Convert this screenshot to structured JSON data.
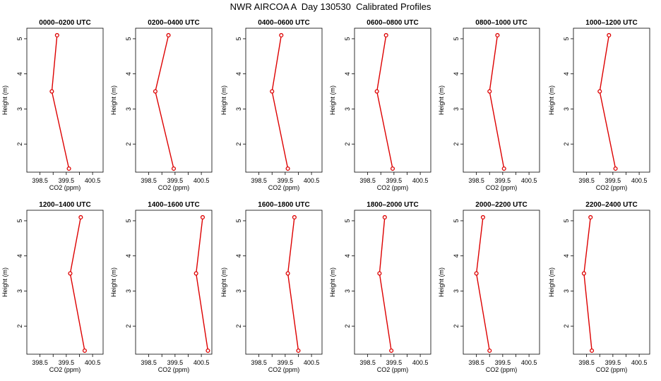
{
  "figure": {
    "title": "NWR AIRCOA A  Day 130530  Calibrated Profiles"
  },
  "colors": {
    "series": "#dd0000",
    "axis": "#000000"
  },
  "chart_data": [
    {
      "type": "line",
      "title": "0000–0200 UTC",
      "xlabel": "CO2 (ppm)",
      "ylabel": "Height (m)",
      "xlim": [
        398.0,
        400.9
      ],
      "ylim": [
        1.2,
        5.3
      ],
      "xticks": [
        "398.5",
        "399.5",
        "400.5"
      ],
      "xtick_values": [
        398.5,
        399.5,
        400.5
      ],
      "yticks": [
        "2",
        "3",
        "4",
        "5"
      ],
      "series": [
        {
          "x": [
            399.15,
            398.95,
            399.6
          ],
          "y": [
            5.1,
            3.5,
            1.3
          ]
        }
      ]
    },
    {
      "type": "line",
      "title": "0200–0400 UTC",
      "xlabel": "CO2 (ppm)",
      "ylabel": "Height (m)",
      "xlim": [
        398.0,
        400.9
      ],
      "ylim": [
        1.2,
        5.3
      ],
      "xticks": [
        "398.5",
        "399.5",
        "400.5"
      ],
      "xtick_values": [
        398.5,
        399.5,
        400.5
      ],
      "yticks": [
        "2",
        "3",
        "4",
        "5"
      ],
      "series": [
        {
          "x": [
            399.25,
            398.75,
            399.45
          ],
          "y": [
            5.1,
            3.5,
            1.3
          ]
        }
      ]
    },
    {
      "type": "line",
      "title": "0400–0600 UTC",
      "xlabel": "CO2 (ppm)",
      "ylabel": "Height (m)",
      "xlim": [
        398.0,
        400.9
      ],
      "ylim": [
        1.2,
        5.3
      ],
      "xticks": [
        "398.5",
        "399.5",
        "400.5"
      ],
      "xtick_values": [
        398.5,
        399.5,
        400.5
      ],
      "yticks": [
        "2",
        "3",
        "4",
        "5"
      ],
      "series": [
        {
          "x": [
            399.35,
            399.0,
            399.6
          ],
          "y": [
            5.1,
            3.5,
            1.3
          ]
        }
      ]
    },
    {
      "type": "line",
      "title": "0600–0800 UTC",
      "xlabel": "CO2 (ppm)",
      "ylabel": "Height (m)",
      "xlim": [
        398.0,
        400.9
      ],
      "ylim": [
        1.2,
        5.3
      ],
      "xticks": [
        "398.5",
        "399.5",
        "400.5"
      ],
      "xtick_values": [
        398.5,
        399.5,
        400.5
      ],
      "yticks": [
        "2",
        "3",
        "4",
        "5"
      ],
      "series": [
        {
          "x": [
            399.2,
            398.85,
            399.45
          ],
          "y": [
            5.1,
            3.5,
            1.3
          ]
        }
      ]
    },
    {
      "type": "line",
      "title": "0800–1000 UTC",
      "xlabel": "CO2 (ppm)",
      "ylabel": "Height (m)",
      "xlim": [
        398.0,
        400.9
      ],
      "ylim": [
        1.2,
        5.3
      ],
      "xticks": [
        "398.5",
        "399.5",
        "400.5"
      ],
      "xtick_values": [
        398.5,
        399.5,
        400.5
      ],
      "yticks": [
        "2",
        "3",
        "4",
        "5"
      ],
      "series": [
        {
          "x": [
            399.3,
            399.0,
            399.55
          ],
          "y": [
            5.1,
            3.5,
            1.3
          ]
        }
      ]
    },
    {
      "type": "line",
      "title": "1000–1200 UTC",
      "xlabel": "CO2 (ppm)",
      "ylabel": "Height (m)",
      "xlim": [
        398.0,
        400.9
      ],
      "ylim": [
        1.2,
        5.3
      ],
      "xticks": [
        "398.5",
        "399.5",
        "400.5"
      ],
      "xtick_values": [
        398.5,
        399.5,
        400.5
      ],
      "yticks": [
        "2",
        "3",
        "4",
        "5"
      ],
      "series": [
        {
          "x": [
            399.35,
            399.0,
            399.6
          ],
          "y": [
            5.1,
            3.5,
            1.3
          ]
        }
      ]
    },
    {
      "type": "line",
      "title": "1200–1400 UTC",
      "xlabel": "CO2 (ppm)",
      "ylabel": "Height (m)",
      "xlim": [
        398.0,
        400.9
      ],
      "ylim": [
        1.2,
        5.3
      ],
      "xticks": [
        "398.5",
        "399.5",
        "400.5"
      ],
      "xtick_values": [
        398.5,
        399.5,
        400.5
      ],
      "yticks": [
        "2",
        "3",
        "4",
        "5"
      ],
      "series": [
        {
          "x": [
            400.05,
            399.65,
            400.2
          ],
          "y": [
            5.1,
            3.5,
            1.3
          ]
        }
      ]
    },
    {
      "type": "line",
      "title": "1400–1600 UTC",
      "xlabel": "CO2 (ppm)",
      "ylabel": "Height (m)",
      "xlim": [
        398.0,
        400.9
      ],
      "ylim": [
        1.2,
        5.3
      ],
      "xticks": [
        "398.5",
        "399.5",
        "400.5"
      ],
      "xtick_values": [
        398.5,
        399.5,
        400.5
      ],
      "yticks": [
        "2",
        "3",
        "4",
        "5"
      ],
      "series": [
        {
          "x": [
            400.55,
            400.3,
            400.75
          ],
          "y": [
            5.1,
            3.5,
            1.3
          ]
        }
      ]
    },
    {
      "type": "line",
      "title": "1600–1800 UTC",
      "xlabel": "CO2 (ppm)",
      "ylabel": "Height (m)",
      "xlim": [
        398.0,
        400.9
      ],
      "ylim": [
        1.2,
        5.3
      ],
      "xticks": [
        "398.5",
        "399.5",
        "400.5"
      ],
      "xtick_values": [
        398.5,
        399.5,
        400.5
      ],
      "yticks": [
        "2",
        "3",
        "4",
        "5"
      ],
      "series": [
        {
          "x": [
            399.85,
            399.6,
            400.0
          ],
          "y": [
            5.1,
            3.5,
            1.3
          ]
        }
      ]
    },
    {
      "type": "line",
      "title": "1800–2000 UTC",
      "xlabel": "CO2 (ppm)",
      "ylabel": "Height (m)",
      "xlim": [
        398.0,
        400.9
      ],
      "ylim": [
        1.2,
        5.3
      ],
      "xticks": [
        "398.5",
        "399.5",
        "400.5"
      ],
      "xtick_values": [
        398.5,
        399.5,
        400.5
      ],
      "yticks": [
        "2",
        "3",
        "4",
        "5"
      ],
      "series": [
        {
          "x": [
            399.15,
            398.95,
            399.4
          ],
          "y": [
            5.1,
            3.5,
            1.3
          ]
        }
      ]
    },
    {
      "type": "line",
      "title": "2000–2200 UTC",
      "xlabel": "CO2 (ppm)",
      "ylabel": "Height (m)",
      "xlim": [
        398.0,
        400.9
      ],
      "ylim": [
        1.2,
        5.3
      ],
      "xticks": [
        "398.5",
        "399.5",
        "400.5"
      ],
      "xtick_values": [
        398.5,
        399.5,
        400.5
      ],
      "yticks": [
        "2",
        "3",
        "4",
        "5"
      ],
      "series": [
        {
          "x": [
            398.75,
            398.5,
            399.0
          ],
          "y": [
            5.1,
            3.5,
            1.3
          ]
        }
      ]
    },
    {
      "type": "line",
      "title": "2200–2400 UTC",
      "xlabel": "CO2 (ppm)",
      "ylabel": "Height (m)",
      "xlim": [
        398.0,
        400.9
      ],
      "ylim": [
        1.2,
        5.3
      ],
      "xticks": [
        "398.5",
        "399.5",
        "400.5"
      ],
      "xtick_values": [
        398.5,
        399.5,
        400.5
      ],
      "yticks": [
        "2",
        "3",
        "4",
        "5"
      ],
      "series": [
        {
          "x": [
            398.65,
            398.4,
            398.7
          ],
          "y": [
            5.1,
            3.5,
            1.3
          ]
        }
      ]
    }
  ]
}
